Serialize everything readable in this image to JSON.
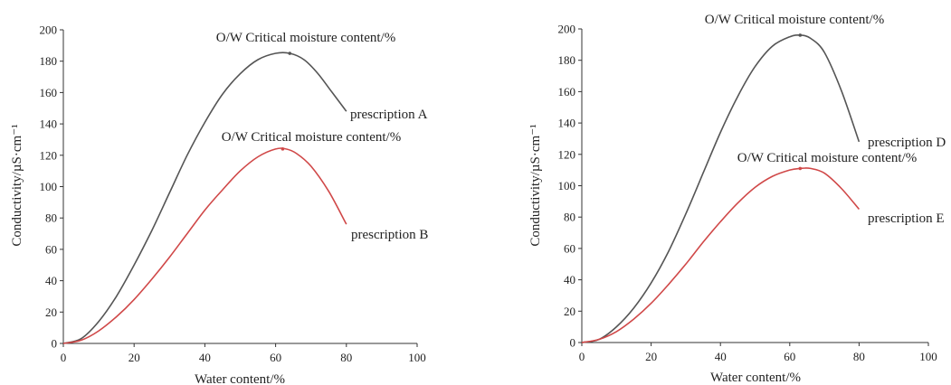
{
  "chart_data": [
    {
      "type": "line",
      "xlabel": "Water content/%",
      "ylabel": "Conductivity/µS·cm⁻¹",
      "xlim": [
        0,
        100
      ],
      "ylim": [
        0,
        200
      ],
      "xticks": [
        "0",
        "20",
        "40",
        "60",
        "80",
        "100"
      ],
      "yticks": [
        "0",
        "20",
        "40",
        "60",
        "80",
        "100",
        "120",
        "140",
        "160",
        "180",
        "200"
      ],
      "grid": false,
      "series": [
        {
          "name": "prescription A",
          "color": "#555555",
          "x": [
            0,
            5,
            10,
            15,
            20,
            25,
            30,
            35,
            40,
            45,
            50,
            55,
            60,
            64,
            68,
            72,
            76,
            80
          ],
          "y": [
            0,
            3,
            14,
            30,
            50,
            72,
            96,
            120,
            141,
            159,
            172,
            181,
            185,
            185,
            181,
            172,
            160,
            148
          ]
        },
        {
          "name": "prescription B",
          "color": "#d04848",
          "x": [
            0,
            5,
            10,
            15,
            20,
            25,
            30,
            35,
            40,
            45,
            50,
            55,
            60,
            63,
            66,
            70,
            75,
            80
          ],
          "y": [
            0,
            2,
            8,
            17,
            28,
            41,
            55,
            70,
            85,
            98,
            110,
            119,
            124,
            124,
            121,
            113,
            97,
            76
          ]
        }
      ],
      "annotations": [
        {
          "text": "O/W Critical moisture content/%",
          "series": "prescription A",
          "x": 64,
          "y": 185
        },
        {
          "text": "O/W Critical moisture content/%",
          "series": "prescription B",
          "x": 62,
          "y": 124
        }
      ]
    },
    {
      "type": "line",
      "xlabel": "Water content/%",
      "ylabel": "Conductivity/µS·cm⁻¹",
      "xlim": [
        0,
        100
      ],
      "ylim": [
        0,
        200
      ],
      "xticks": [
        "0",
        "20",
        "40",
        "60",
        "80",
        "100"
      ],
      "yticks": [
        "0",
        "20",
        "40",
        "60",
        "80",
        "100",
        "120",
        "140",
        "160",
        "180",
        "200"
      ],
      "grid": false,
      "series": [
        {
          "name": "prescription D",
          "color": "#555555",
          "x": [
            0,
            5,
            10,
            15,
            20,
            25,
            30,
            35,
            40,
            45,
            50,
            55,
            60,
            63,
            66,
            70,
            75,
            80
          ],
          "y": [
            0,
            2,
            10,
            22,
            38,
            58,
            82,
            108,
            134,
            157,
            176,
            189,
            195,
            196,
            194,
            185,
            160,
            128
          ]
        },
        {
          "name": "prescription E",
          "color": "#d04848",
          "x": [
            0,
            5,
            10,
            15,
            20,
            25,
            30,
            35,
            40,
            45,
            50,
            55,
            60,
            63,
            66,
            70,
            75,
            80
          ],
          "y": [
            0,
            2,
            7,
            15,
            25,
            37,
            50,
            64,
            77,
            89,
            99,
            106,
            110,
            111,
            111,
            108,
            98,
            85
          ]
        }
      ],
      "annotations": [
        {
          "text": "O/W Critical moisture content/%",
          "series": "prescription D",
          "x": 63,
          "y": 196
        },
        {
          "text": "O/W Critical moisture content/%",
          "series": "prescription E",
          "x": 63,
          "y": 111
        }
      ]
    }
  ]
}
